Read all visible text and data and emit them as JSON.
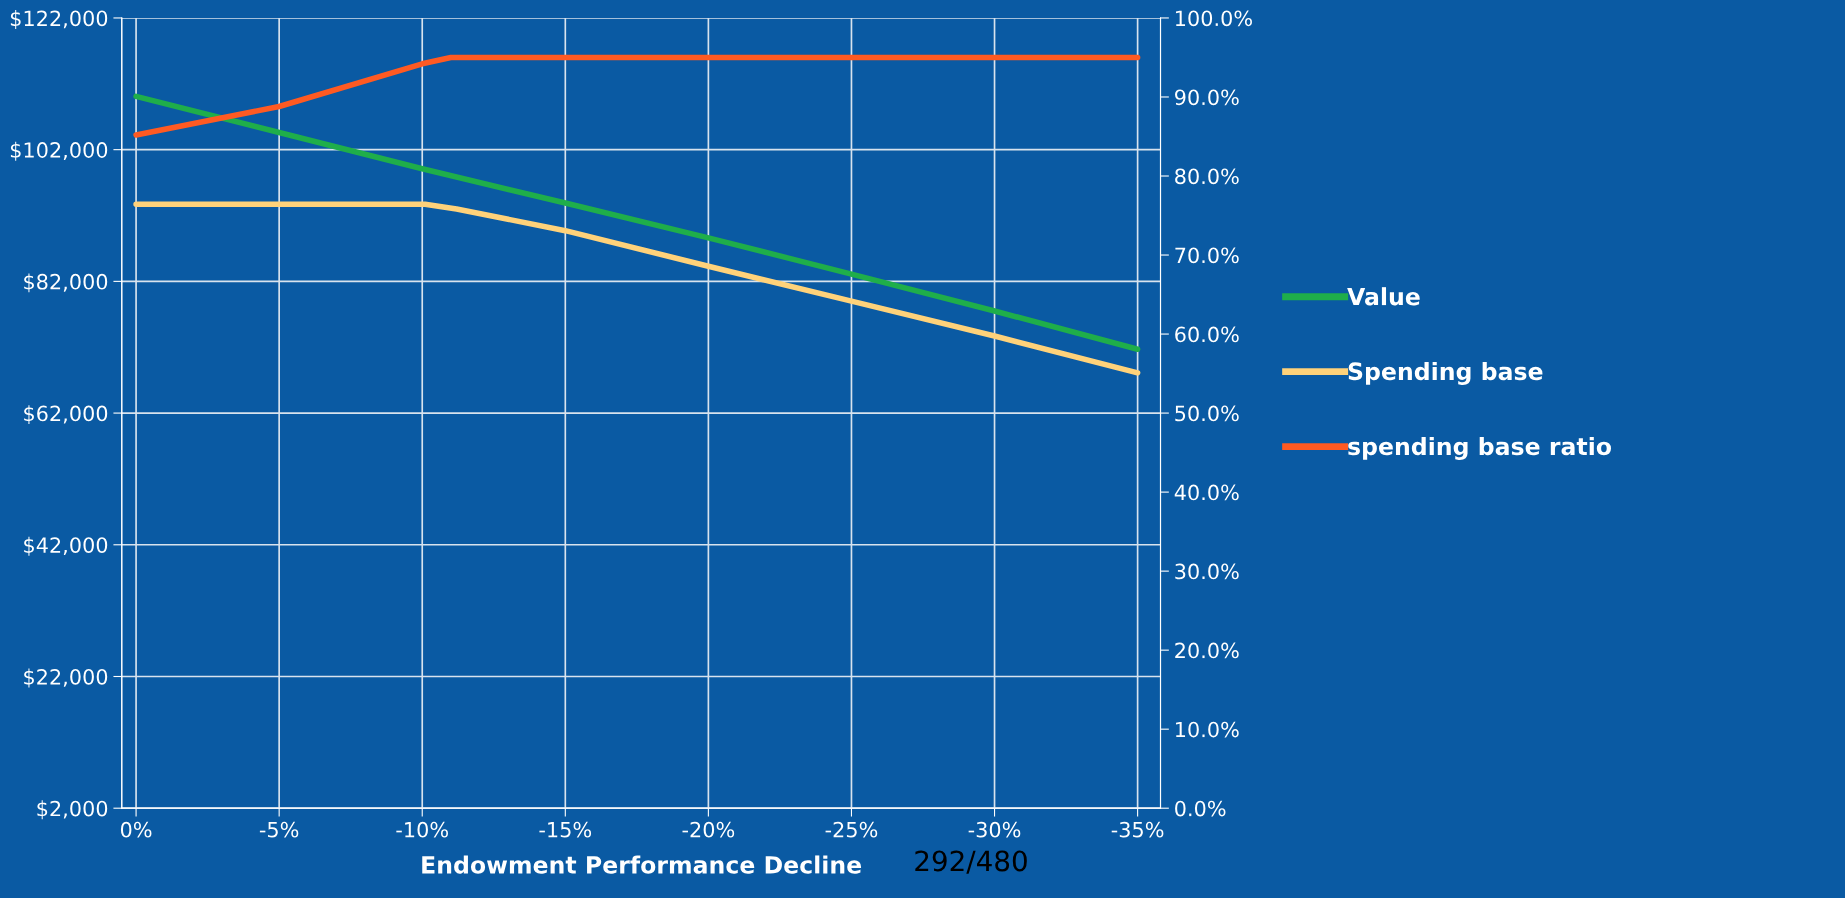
{
  "chart_data": {
    "type": "line",
    "xlabel": "Endowment Performance Decline",
    "xlim": [
      0.5,
      -35.8
    ],
    "xticks": [
      {
        "value": 0,
        "label": "0%"
      },
      {
        "value": -5,
        "label": "-5%"
      },
      {
        "value": -10,
        "label": "-10%"
      },
      {
        "value": -15,
        "label": "-15%"
      },
      {
        "value": -20,
        "label": "-20%"
      },
      {
        "value": -25,
        "label": "-25%"
      },
      {
        "value": -30,
        "label": "-30%"
      },
      {
        "value": -35,
        "label": "-35%"
      }
    ],
    "ylim": [
      2000,
      122000
    ],
    "yticks": [
      {
        "value": 2000,
        "label": "$2,000"
      },
      {
        "value": 22000,
        "label": "$22,000"
      },
      {
        "value": 42000,
        "label": "$42,000"
      },
      {
        "value": 62000,
        "label": "$62,000"
      },
      {
        "value": 82000,
        "label": "$82,000"
      },
      {
        "value": 102000,
        "label": "$102,000"
      },
      {
        "value": 122000,
        "label": "$122,000"
      }
    ],
    "y2lim": [
      0,
      100
    ],
    "y2ticks": [
      {
        "value": 0,
        "label": "0.0%"
      },
      {
        "value": 10,
        "label": "10.0%"
      },
      {
        "value": 20,
        "label": "20.0%"
      },
      {
        "value": 30,
        "label": "30.0%"
      },
      {
        "value": 40,
        "label": "40.0%"
      },
      {
        "value": 50,
        "label": "50.0%"
      },
      {
        "value": 60,
        "label": "60.0%"
      },
      {
        "value": 70,
        "label": "70.0%"
      },
      {
        "value": 80,
        "label": "80.0%"
      },
      {
        "value": 90,
        "label": "90.0%"
      },
      {
        "value": 100,
        "label": "100.0%"
      }
    ],
    "series": [
      {
        "name": "Value",
        "color": "#1fae4a",
        "x": [
          0,
          -5,
          -10,
          -15,
          -20,
          -25,
          -30,
          -35
        ],
        "values": [
          110100,
          104600,
          99100,
          93900,
          88600,
          83100,
          77500,
          71700
        ]
      },
      {
        "name": "Spending base",
        "color": "#ffd27a",
        "x": [
          0,
          -5,
          -10.1,
          -11.2,
          -15,
          -20,
          -25,
          -30,
          -35
        ],
        "values": [
          93700,
          93700,
          93700,
          93000,
          89700,
          84300,
          79000,
          73700,
          68100
        ]
      },
      {
        "name": "spending base ratio",
        "color": "#ff5a22",
        "axis": "y2",
        "x": [
          0,
          -5,
          -10,
          -11,
          -15,
          -20,
          -25,
          -30,
          -35
        ],
        "values": [
          85.2,
          88.8,
          94.2,
          95,
          95,
          95,
          95,
          95,
          95
        ]
      }
    ],
    "grid": true,
    "legend": "right",
    "marker": "none",
    "line_style": "solid",
    "annotations": [
      "292/480"
    ]
  }
}
